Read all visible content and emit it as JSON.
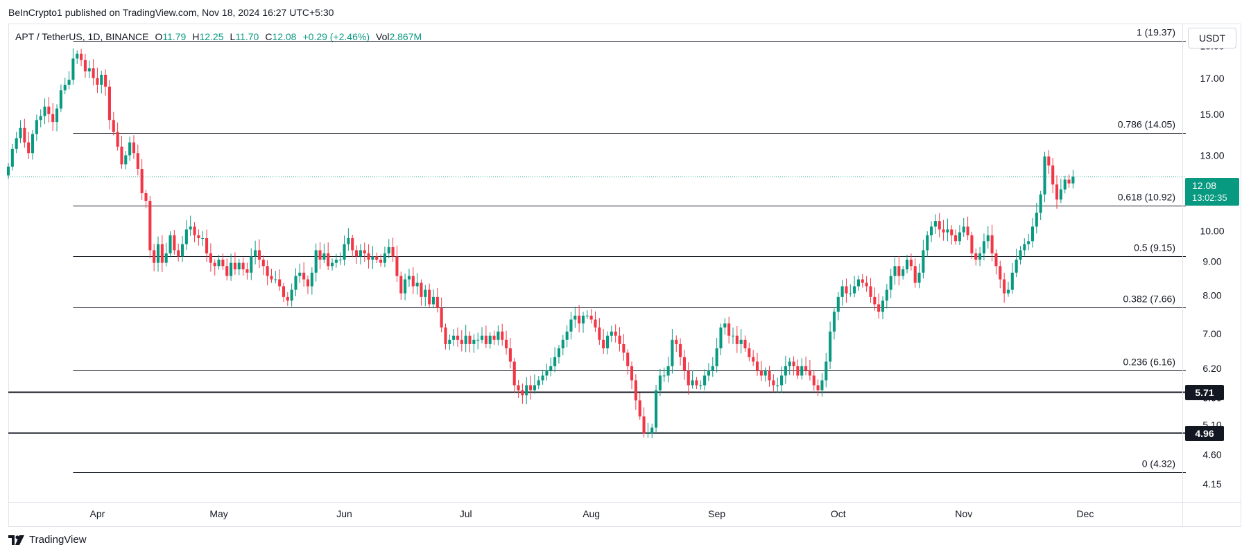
{
  "publisher_text": "BeInCrypto1 published on TradingView.com, Nov 18, 2024 16:27 UTC+5:30",
  "legend": {
    "symbol": "APT / TetherUS, 1D, BINANCE",
    "open_label": "O",
    "open": "11.79",
    "high_label": "H",
    "high": "12.25",
    "low_label": "L",
    "low": "11.70",
    "close_label": "C",
    "close": "12.08",
    "change": "+0.29 (+2.46%)",
    "vol_label": "Vol",
    "vol": "2.867M"
  },
  "currency_button": "USDT",
  "last_price": {
    "value": "12.08",
    "countdown": "13:02:35"
  },
  "support_levels": [
    {
      "label": "5.71",
      "value": 5.71
    },
    {
      "label": "4.96",
      "value": 4.96
    }
  ],
  "footer": {
    "brand": "TradingView"
  },
  "colors": {
    "up": "#089981",
    "down": "#f23645",
    "line": "#131722",
    "grid": "#e0e3eb"
  },
  "chart_data": {
    "type": "candlestick",
    "scale": "log",
    "ylim": [
      3.9,
      20.5
    ],
    "xlim": [
      "2024-03-10",
      "2024-12-25"
    ],
    "y_ticks": [
      4.15,
      4.6,
      5.1,
      5.6,
      6.2,
      7.0,
      8.0,
      9.0,
      10.0,
      13.0,
      15.0,
      17.0,
      19.0
    ],
    "y_tick_labels": [
      "4.15",
      "4.60",
      "5.10",
      "5.60",
      "6.20",
      "7.00",
      "8.00",
      "9.00",
      "10.00",
      "13.00",
      "15.00",
      "17.00",
      "19.00"
    ],
    "x_ticks": [
      {
        "label": "Apr",
        "date": "2024-04-01"
      },
      {
        "label": "May",
        "date": "2024-05-01"
      },
      {
        "label": "Jun",
        "date": "2024-06-01"
      },
      {
        "label": "Jul",
        "date": "2024-07-01"
      },
      {
        "label": "Aug",
        "date": "2024-08-01"
      },
      {
        "label": "Sep",
        "date": "2024-09-01"
      },
      {
        "label": "Oct",
        "date": "2024-10-01"
      },
      {
        "label": "Nov",
        "date": "2024-11-01"
      },
      {
        "label": "Dec",
        "date": "2024-12-01"
      }
    ],
    "fib_start": "2024-03-26",
    "fib_levels": [
      {
        "ratio": "1",
        "value": 19.37,
        "label": "1 (19.37)"
      },
      {
        "ratio": "0.786",
        "value": 14.05,
        "label": "0.786 (14.05)"
      },
      {
        "ratio": "0.618",
        "value": 10.92,
        "label": "0.618 (10.92)"
      },
      {
        "ratio": "0.5",
        "value": 9.15,
        "label": "0.5 (9.15)"
      },
      {
        "ratio": "0.382",
        "value": 7.66,
        "label": "0.382 (7.66)"
      },
      {
        "ratio": "0.236",
        "value": 6.16,
        "label": "0.236 (6.16)"
      },
      {
        "ratio": "0",
        "value": 4.32,
        "label": "0 (4.32)"
      }
    ],
    "horizontal_lines": [
      5.71,
      4.96
    ],
    "last_close": 12.08,
    "series": [
      {
        "name": "APT / TetherUS",
        "first_date": "2024-03-10",
        "close": [
          12.5,
          13.3,
          13.8,
          14.3,
          13.6,
          13.1,
          14.0,
          14.7,
          14.9,
          15.4,
          15.0,
          14.6,
          15.3,
          16.3,
          16.6,
          16.9,
          18.2,
          18.5,
          18.1,
          17.4,
          17.6,
          17.0,
          16.6,
          17.2,
          16.5,
          14.7,
          14.1,
          13.4,
          12.6,
          13.0,
          13.6,
          13.1,
          12.4,
          11.4,
          11.1,
          9.35,
          8.95,
          9.55,
          8.95,
          9.25,
          9.85,
          9.35,
          9.15,
          9.55,
          10.05,
          10.15,
          9.85,
          9.75,
          9.75,
          9.25,
          8.95,
          8.85,
          9.05,
          8.85,
          8.55,
          8.95,
          8.75,
          8.95,
          8.75,
          8.65,
          9.15,
          9.35,
          9.05,
          8.85,
          8.55,
          8.45,
          8.45,
          8.25,
          7.95,
          7.85,
          8.15,
          8.55,
          8.65,
          8.45,
          8.25,
          8.65,
          9.35,
          9.05,
          9.25,
          8.85,
          8.95,
          9.05,
          9.05,
          9.55,
          9.75,
          9.35,
          9.15,
          9.35,
          9.25,
          9.05,
          9.15,
          9.05,
          8.95,
          9.25,
          9.45,
          9.15,
          8.55,
          8.05,
          8.45,
          8.55,
          8.25,
          8.35,
          7.95,
          8.15,
          7.75,
          7.95,
          7.65,
          7.15,
          6.75,
          6.85,
          6.95,
          6.85,
          6.75,
          6.95,
          6.75,
          6.85,
          6.85,
          6.95,
          6.75,
          6.95,
          6.85,
          7.05,
          6.85,
          6.65,
          6.35,
          5.85,
          5.75,
          5.65,
          5.85,
          5.75,
          5.85,
          5.95,
          6.05,
          6.15,
          6.25,
          6.45,
          6.65,
          6.85,
          7.05,
          7.35,
          7.45,
          7.25,
          7.45,
          7.45,
          7.35,
          7.15,
          6.85,
          6.65,
          6.95,
          7.05,
          6.95,
          6.75,
          6.55,
          6.25,
          5.95,
          5.55,
          5.25,
          4.95,
          4.95,
          5.05,
          5.75,
          6.05,
          6.05,
          6.25,
          6.85,
          6.75,
          6.45,
          6.15,
          5.85,
          5.95,
          5.85,
          5.85,
          6.05,
          6.15,
          6.25,
          6.65,
          7.15,
          7.25,
          6.95,
          6.95,
          6.75,
          6.85,
          6.65,
          6.45,
          6.35,
          6.15,
          6.05,
          6.15,
          5.95,
          5.85,
          5.85,
          6.05,
          6.25,
          6.35,
          6.25,
          6.05,
          6.25,
          6.15,
          6.05,
          5.85,
          5.75,
          5.95,
          6.35,
          7.05,
          7.55,
          7.95,
          8.25,
          8.05,
          8.05,
          8.25,
          8.45,
          8.35,
          8.25,
          7.95,
          7.75,
          7.55,
          7.85,
          8.15,
          8.55,
          8.85,
          8.55,
          8.75,
          9.05,
          8.85,
          8.35,
          8.65,
          9.35,
          9.85,
          10.15,
          10.35,
          10.05,
          9.95,
          10.05,
          9.85,
          9.65,
          9.95,
          10.15,
          9.85,
          9.25,
          9.05,
          9.25,
          9.65,
          9.85,
          9.25,
          8.85,
          8.45,
          8.05,
          8.15,
          8.65,
          9.05,
          9.35,
          9.55,
          9.65,
          10.15,
          10.65,
          11.35,
          12.95,
          12.55,
          11.75,
          11.15,
          11.55,
          11.95,
          11.79,
          12.08
        ]
      }
    ]
  }
}
